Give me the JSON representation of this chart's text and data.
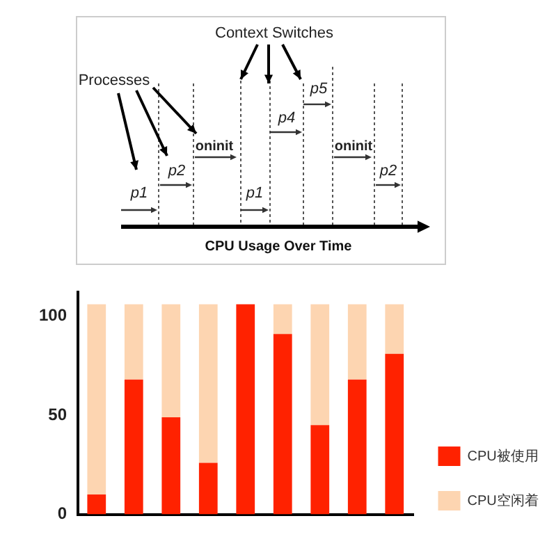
{
  "chart_data": [
    {
      "type": "other",
      "xlabel": "CPU Usage Over Time",
      "annotations": [
        "Context Switches",
        "Processes",
        "p1",
        "p2",
        "oninit",
        "p1",
        "p4",
        "p5",
        "oninit",
        "p2"
      ]
    },
    {
      "type": "bar",
      "categories": [
        null,
        null,
        null,
        null,
        null,
        null,
        null,
        null,
        null
      ],
      "stacked": true,
      "ylim": [
        0,
        112
      ],
      "yticks": [
        0,
        50,
        100
      ],
      "grid": false,
      "legend": "right",
      "series": [
        {
          "name": "CPU被使用",
          "color": "#ff2200",
          "values": [
            10,
            68,
            49,
            26,
            106,
            91,
            45,
            68,
            81
          ]
        },
        {
          "name": "CPU空闲着",
          "color": "#fdd5b1",
          "values": [
            96,
            38,
            57,
            80,
            0,
            15,
            61,
            38,
            25
          ]
        }
      ]
    }
  ]
}
